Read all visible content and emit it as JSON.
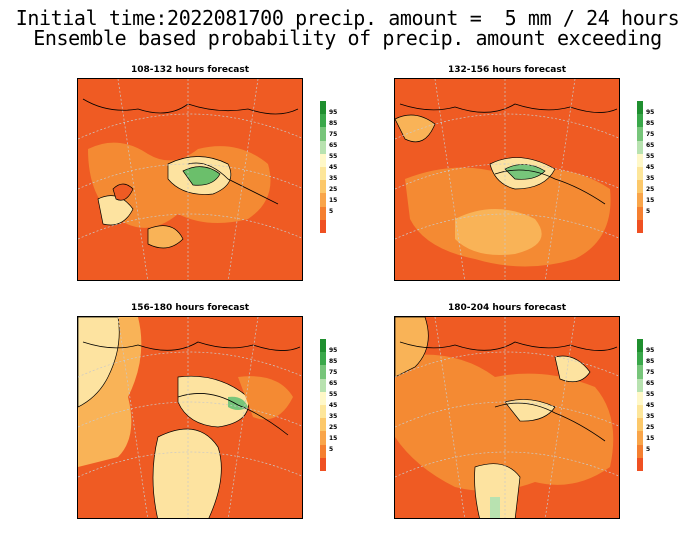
{
  "header": {
    "line1": "Initial time:2022081700 precip. amount =  5 mm / 24 hours",
    "line2": "Ensemble based probability of precip. amount exceeding"
  },
  "colorbar": {
    "labels": [
      "95",
      "85",
      "75",
      "65",
      "55",
      "45",
      "35",
      "25",
      "15",
      "5"
    ],
    "colors": [
      "#1f8f2f",
      "#3aa84a",
      "#77c57a",
      "#b8e2b0",
      "#fff8c8",
      "#fde69a",
      "#fcc86a",
      "#f9a54a",
      "#f57f30",
      "#ef5022"
    ]
  },
  "colors": {
    "map_base": "#ef5b23",
    "mid": "#f48a33",
    "light": "#f9b357",
    "pale": "#fde3a0",
    "green": "#6bbf6b",
    "grid": "#c9c9c9",
    "coast": "#000000"
  },
  "panels": [
    {
      "title": "108-132 hours forecast"
    },
    {
      "title": "132-156 hours forecast"
    },
    {
      "title": "156-180 hours forecast"
    },
    {
      "title": "180-204 hours forecast"
    }
  ]
}
